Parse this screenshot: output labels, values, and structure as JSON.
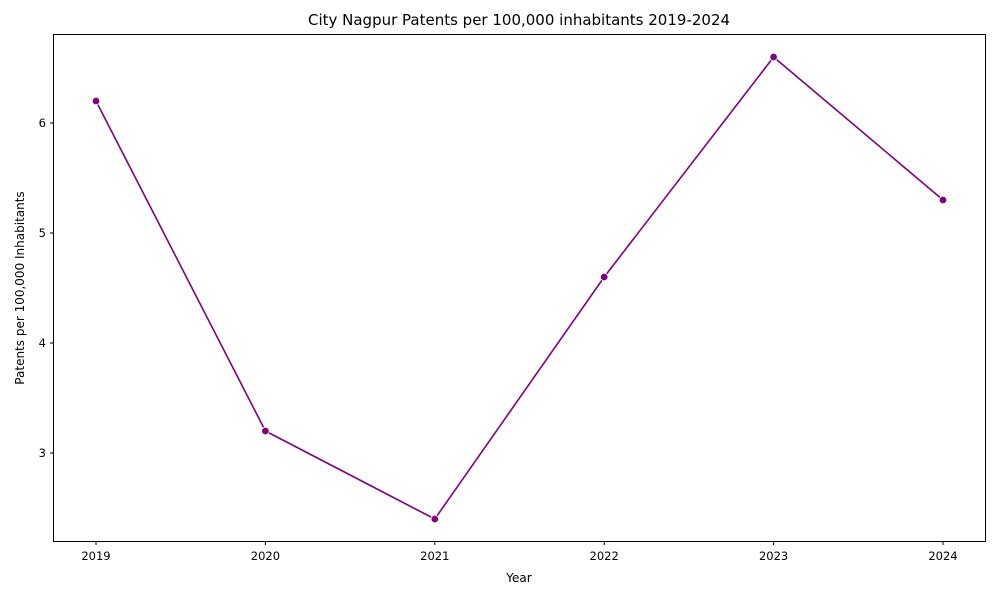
{
  "chart_data": {
    "type": "line",
    "title": "City Nagpur Patents per 100,000 inhabitants 2019-2024",
    "xlabel": "Year",
    "ylabel": "Patents per 100,000 Inhabitants",
    "x": [
      "2019",
      "2020",
      "2021",
      "2022",
      "2023",
      "2024"
    ],
    "series": [
      {
        "values": [
          6.2,
          3.2,
          2.4,
          4.6,
          6.6,
          5.3
        ],
        "color": "#800080",
        "marker": "circle"
      }
    ],
    "yticks": [
      "3",
      "4",
      "5",
      "6"
    ],
    "ylim": [
      2.2,
      6.8
    ],
    "grid": false,
    "legend": "none"
  }
}
